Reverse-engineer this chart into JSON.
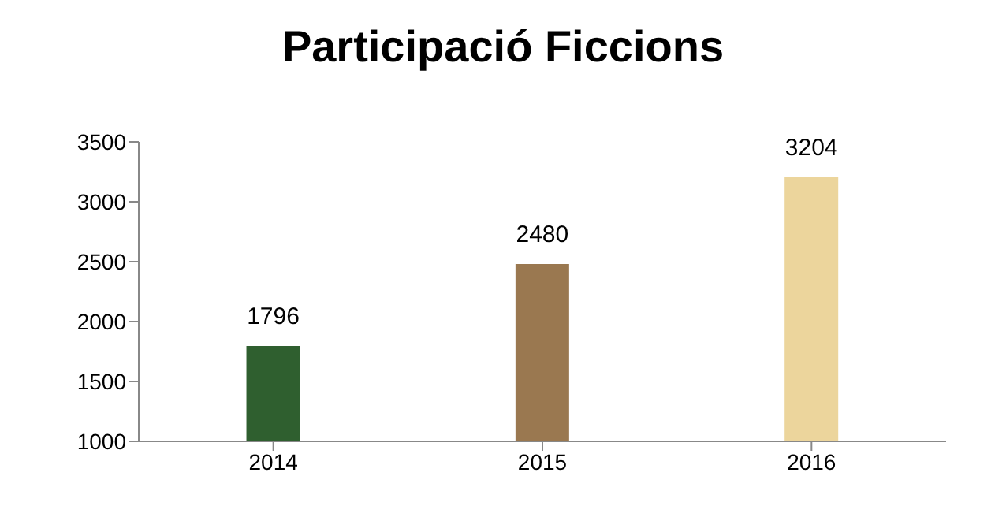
{
  "chart_data": {
    "type": "bar",
    "title": "Participació Ficcions",
    "categories": [
      "2014",
      "2015",
      "2016"
    ],
    "values": [
      1796,
      2480,
      3204
    ],
    "colors": [
      "#2f5f2f",
      "#9a7850",
      "#ecd59c"
    ],
    "ylim": [
      1000,
      3500
    ],
    "yticks": [
      1000,
      1500,
      2000,
      2500,
      3000,
      3500
    ],
    "grid": false,
    "data_labels": true
  }
}
